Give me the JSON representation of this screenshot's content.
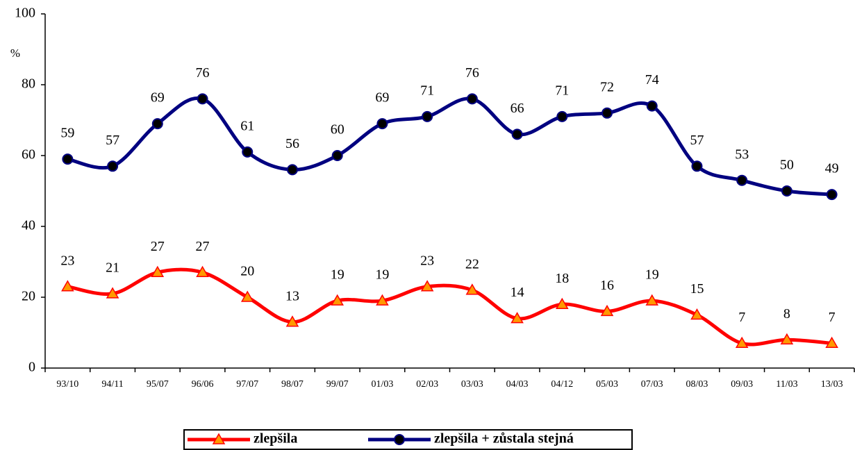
{
  "chart_data": {
    "type": "line",
    "y_label": "%",
    "categories": [
      "93/10",
      "94/11",
      "95/07",
      "96/06",
      "97/07",
      "98/07",
      "99/07",
      "01/03",
      "02/03",
      "03/03",
      "04/03",
      "04/12",
      "05/03",
      "07/03",
      "08/03",
      "09/03",
      "11/03",
      "13/03"
    ],
    "series": [
      {
        "name": "zlepšila",
        "color": "#ff0000",
        "marker": "triangle",
        "marker_color": "#ff9900",
        "values": [
          23,
          21,
          27,
          27,
          20,
          13,
          19,
          19,
          23,
          22,
          14,
          18,
          16,
          19,
          15,
          7,
          8,
          7
        ]
      },
      {
        "name": "zlepšila + zůstala stejná",
        "color": "#000080",
        "marker": "circle",
        "marker_color": "#000000",
        "values": [
          59,
          57,
          69,
          76,
          61,
          56,
          60,
          69,
          71,
          76,
          66,
          71,
          72,
          74,
          57,
          53,
          50,
          49
        ]
      }
    ],
    "ylim": [
      0,
      100
    ],
    "yticks": [
      0,
      20,
      40,
      60,
      80,
      100
    ],
    "grid": false,
    "smooth": true,
    "legend": "bottom"
  }
}
